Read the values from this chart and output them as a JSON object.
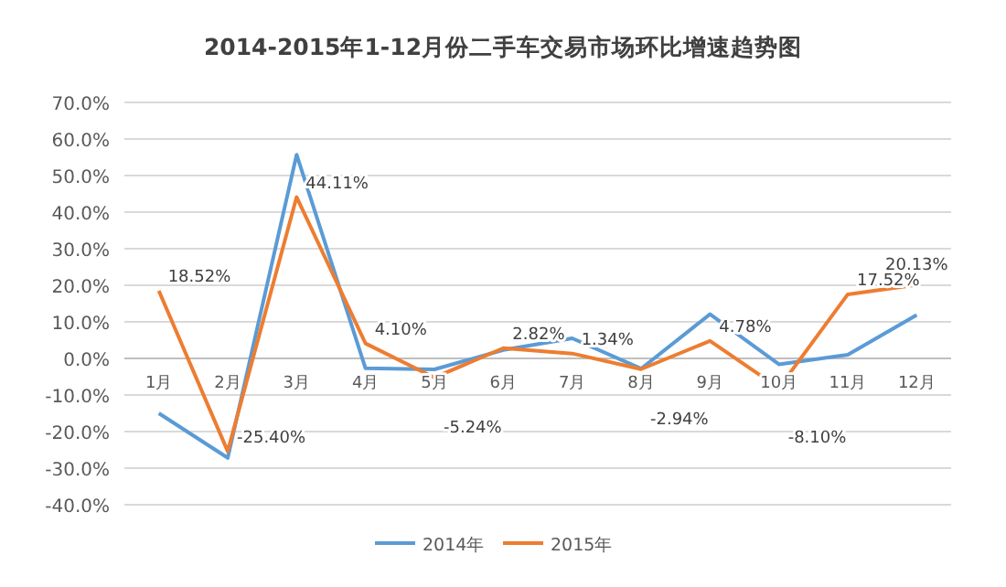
{
  "chart_data": {
    "type": "line",
    "title": "2014-2015年1-12月份二手车交易市场环比增速趋势图",
    "categories": [
      "1月",
      "2月",
      "3月",
      "4月",
      "5月",
      "6月",
      "7月",
      "8月",
      "9月",
      "10月",
      "11月",
      "12月"
    ],
    "series": [
      {
        "name": "2014年",
        "color": "#5b9bd5",
        "values": [
          -15,
          -27.2,
          55.7,
          -2.7,
          -3,
          2.3,
          5.5,
          -2.8,
          12.1,
          -1.6,
          1,
          11.9
        ]
      },
      {
        "name": "2015年",
        "color": "#ed7d31",
        "values": [
          18.52,
          -25.4,
          44.11,
          4.1,
          -5.24,
          2.82,
          1.34,
          -2.94,
          4.78,
          -8.1,
          17.52,
          20.13
        ],
        "value_labels": [
          "18.52%",
          "-25.40%",
          "44.11%",
          "4.10%",
          "-5.24%",
          "2.82%",
          "1.34%",
          "-2.94%",
          "4.78%",
          "-8.10%",
          "17.52%",
          "20.13%"
        ]
      }
    ],
    "ylim": [
      -40,
      70
    ],
    "yticks": [
      {
        "value": -40,
        "label": "-40.0%"
      },
      {
        "value": -30,
        "label": "-30.0%"
      },
      {
        "value": -20,
        "label": "-20.0%"
      },
      {
        "value": -10,
        "label": "-10.0%"
      },
      {
        "value": 0,
        "label": "0.0%"
      },
      {
        "value": 10,
        "label": "10.0%"
      },
      {
        "value": 20,
        "label": "20.0%"
      },
      {
        "value": 30,
        "label": "30.0%"
      },
      {
        "value": 40,
        "label": "40.0%"
      },
      {
        "value": 50,
        "label": "50.0%"
      },
      {
        "value": 60,
        "label": "60.0%"
      },
      {
        "value": 70,
        "label": "70.0%"
      }
    ],
    "grid": "y",
    "legend": "bottom",
    "marker": "none",
    "line_style": "solid"
  }
}
